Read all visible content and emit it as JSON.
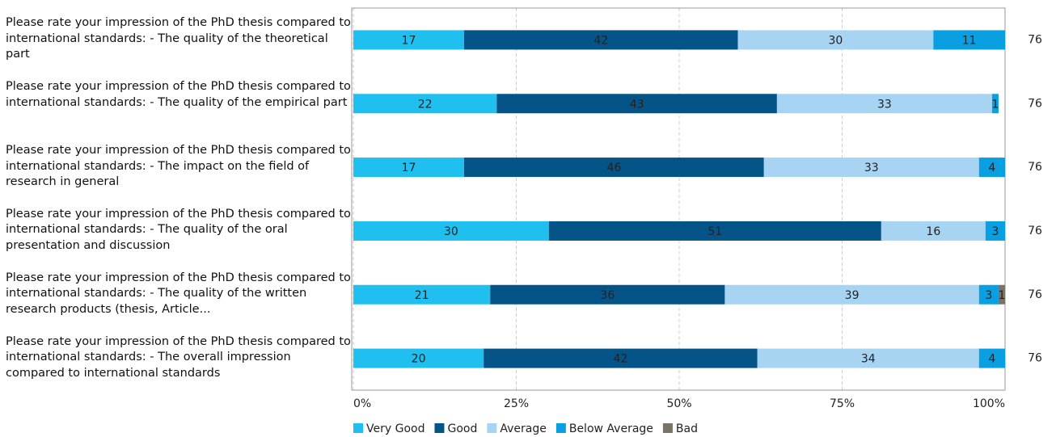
{
  "chart_data": {
    "type": "stacked-bar-horizontal",
    "categories": [
      "Please rate your impression of the PhD thesis compared to international standards: - The quality of the theoretical part",
      "Please rate your impression of the PhD thesis compared to international standards: - The quality of the empirical part",
      "Please rate your impression of the PhD thesis compared to international standards: - The impact on the field of research in general",
      "Please rate your impression of the PhD thesis compared to international standards: - The quality of the oral presentation and discussion",
      "Please rate your impression of the PhD thesis compared to international standards: - The quality of the written research products (thesis, Article...",
      "Please rate your impression of the PhD thesis compared to international standards: - The overall impression compared to international standards"
    ],
    "series": [
      {
        "name": "Very Good",
        "color": "#1fc0f0",
        "values": [
          17,
          22,
          17,
          30,
          21,
          20
        ]
      },
      {
        "name": "Good",
        "color": "#055488",
        "values": [
          42,
          43,
          46,
          51,
          36,
          42
        ]
      },
      {
        "name": "Average",
        "color": "#a8d4f4",
        "values": [
          30,
          33,
          33,
          16,
          39,
          34
        ]
      },
      {
        "name": "Below Average",
        "color": "#0a9fe0",
        "values": [
          11,
          1,
          4,
          3,
          3,
          4
        ]
      },
      {
        "name": "Bad",
        "color": "#7a7466",
        "values": [
          null,
          null,
          null,
          null,
          1,
          null
        ]
      }
    ],
    "n": [
      76,
      76,
      76,
      76,
      76,
      76
    ],
    "xlim": [
      0,
      100
    ],
    "xticks": [
      {
        "value": 0,
        "label": "0%"
      },
      {
        "value": 25,
        "label": "25%"
      },
      {
        "value": 50,
        "label": "50%"
      },
      {
        "value": 75,
        "label": "75%"
      },
      {
        "value": 100,
        "label": "100%"
      }
    ],
    "grid": true
  }
}
